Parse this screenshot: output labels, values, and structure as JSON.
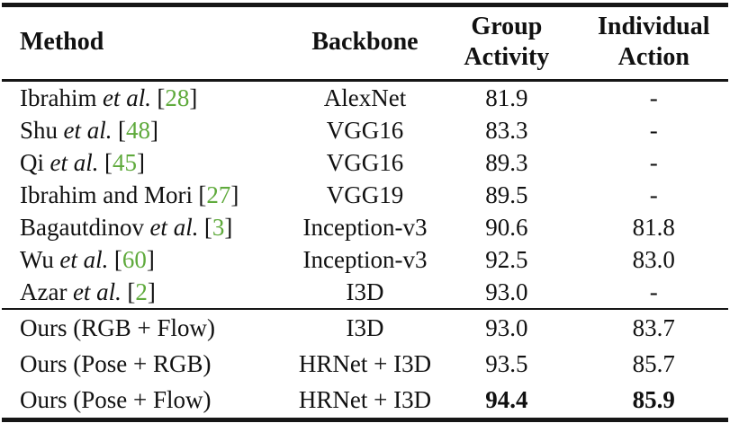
{
  "colors": {
    "citation_green": "#5faa3c",
    "text": "#111111",
    "background": "#ffffff",
    "rule": "#161616"
  },
  "table": {
    "headers": {
      "method": "Method",
      "backbone": "Backbone",
      "group_activity": [
        "Group",
        "Activity"
      ],
      "individual_action": [
        "Individual",
        "Action"
      ]
    },
    "published_rows": [
      {
        "name": "Ibrahim",
        "etal": "et al.",
        "cite_open": "[",
        "cite": "28",
        "cite_close": "]",
        "backbone": "AlexNet",
        "group_activity": "81.9",
        "individual_action": "-"
      },
      {
        "name": "Shu",
        "etal": "et al.",
        "cite_open": "[",
        "cite": "48",
        "cite_close": "]",
        "backbone": "VGG16",
        "group_activity": "83.3",
        "individual_action": "-"
      },
      {
        "name": "Qi",
        "etal": "et al.",
        "cite_open": "[",
        "cite": "45",
        "cite_close": "]",
        "backbone": "VGG16",
        "group_activity": "89.3",
        "individual_action": "-"
      },
      {
        "name": "Ibrahim and Mori",
        "etal": "",
        "cite_open": "[",
        "cite": "27",
        "cite_close": "]",
        "backbone": "VGG19",
        "group_activity": "89.5",
        "individual_action": "-"
      },
      {
        "name": "Bagautdinov",
        "etal": "et al.",
        "cite_open": "[",
        "cite": "3",
        "cite_close": "]",
        "backbone": "Inception-v3",
        "group_activity": "90.6",
        "individual_action": "81.8"
      },
      {
        "name": "Wu",
        "etal": "et al.",
        "cite_open": "[",
        "cite": "60",
        "cite_close": "]",
        "backbone": "Inception-v3",
        "group_activity": "92.5",
        "individual_action": "83.0"
      },
      {
        "name": "Azar",
        "etal": "et al.",
        "cite_open": "[",
        "cite": "2",
        "cite_close": "]",
        "backbone": "I3D",
        "group_activity": "93.0",
        "individual_action": "-"
      }
    ],
    "ours_rows": [
      {
        "name": "Ours (RGB + Flow)",
        "backbone": "I3D",
        "group_activity": "93.0",
        "individual_action": "83.7"
      },
      {
        "name": "Ours (Pose + RGB)",
        "backbone": "HRNet + I3D",
        "group_activity": "93.5",
        "individual_action": "85.7"
      },
      {
        "name": "Ours (Pose + Flow)",
        "backbone": "HRNet + I3D",
        "group_activity": "94.4",
        "individual_action": "85.9"
      }
    ]
  }
}
